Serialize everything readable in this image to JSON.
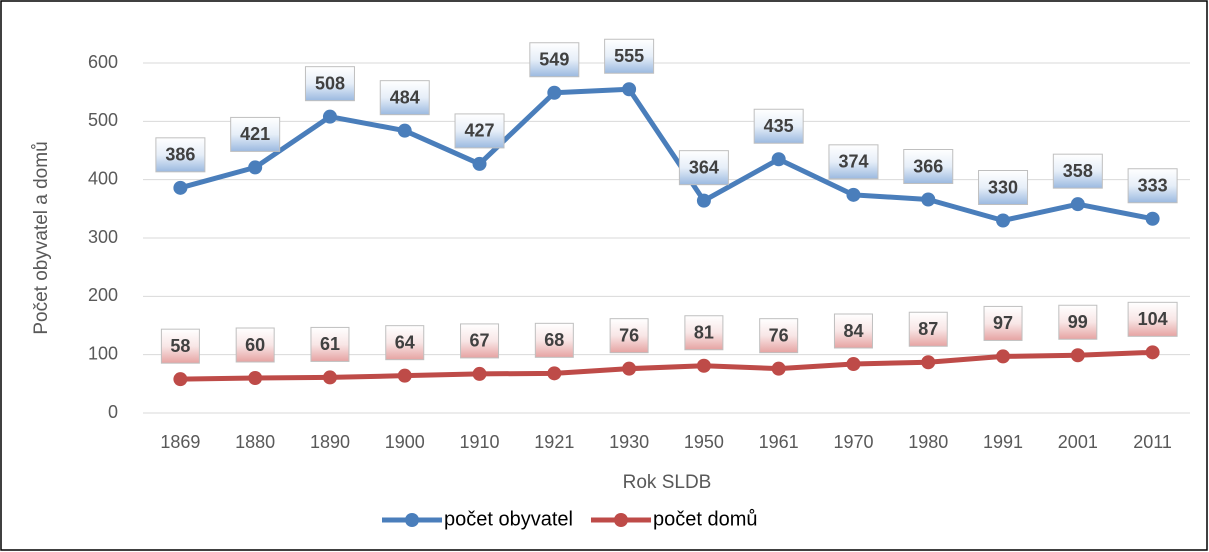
{
  "chart_data": {
    "type": "line",
    "categories": [
      "1869",
      "1880",
      "1890",
      "1900",
      "1910",
      "1921",
      "1930",
      "1950",
      "1961",
      "1970",
      "1980",
      "1991",
      "2001",
      "2011"
    ],
    "series": [
      {
        "name": "počet obyvatel",
        "color": "#4a7ebb",
        "values": [
          386,
          421,
          508,
          484,
          427,
          549,
          555,
          364,
          435,
          374,
          366,
          330,
          358,
          333
        ]
      },
      {
        "name": "počet domů",
        "color": "#be4b48",
        "values": [
          58,
          60,
          61,
          64,
          67,
          68,
          76,
          81,
          76,
          84,
          87,
          97,
          99,
          104
        ]
      }
    ],
    "xlabel": "Rok SLDB",
    "ylabel": "Počet obyvatel a domů",
    "ylim": [
      0,
      600
    ],
    "yticks": [
      0,
      100,
      200,
      300,
      400,
      500,
      600
    ],
    "grid": true,
    "legend": "bottom"
  }
}
